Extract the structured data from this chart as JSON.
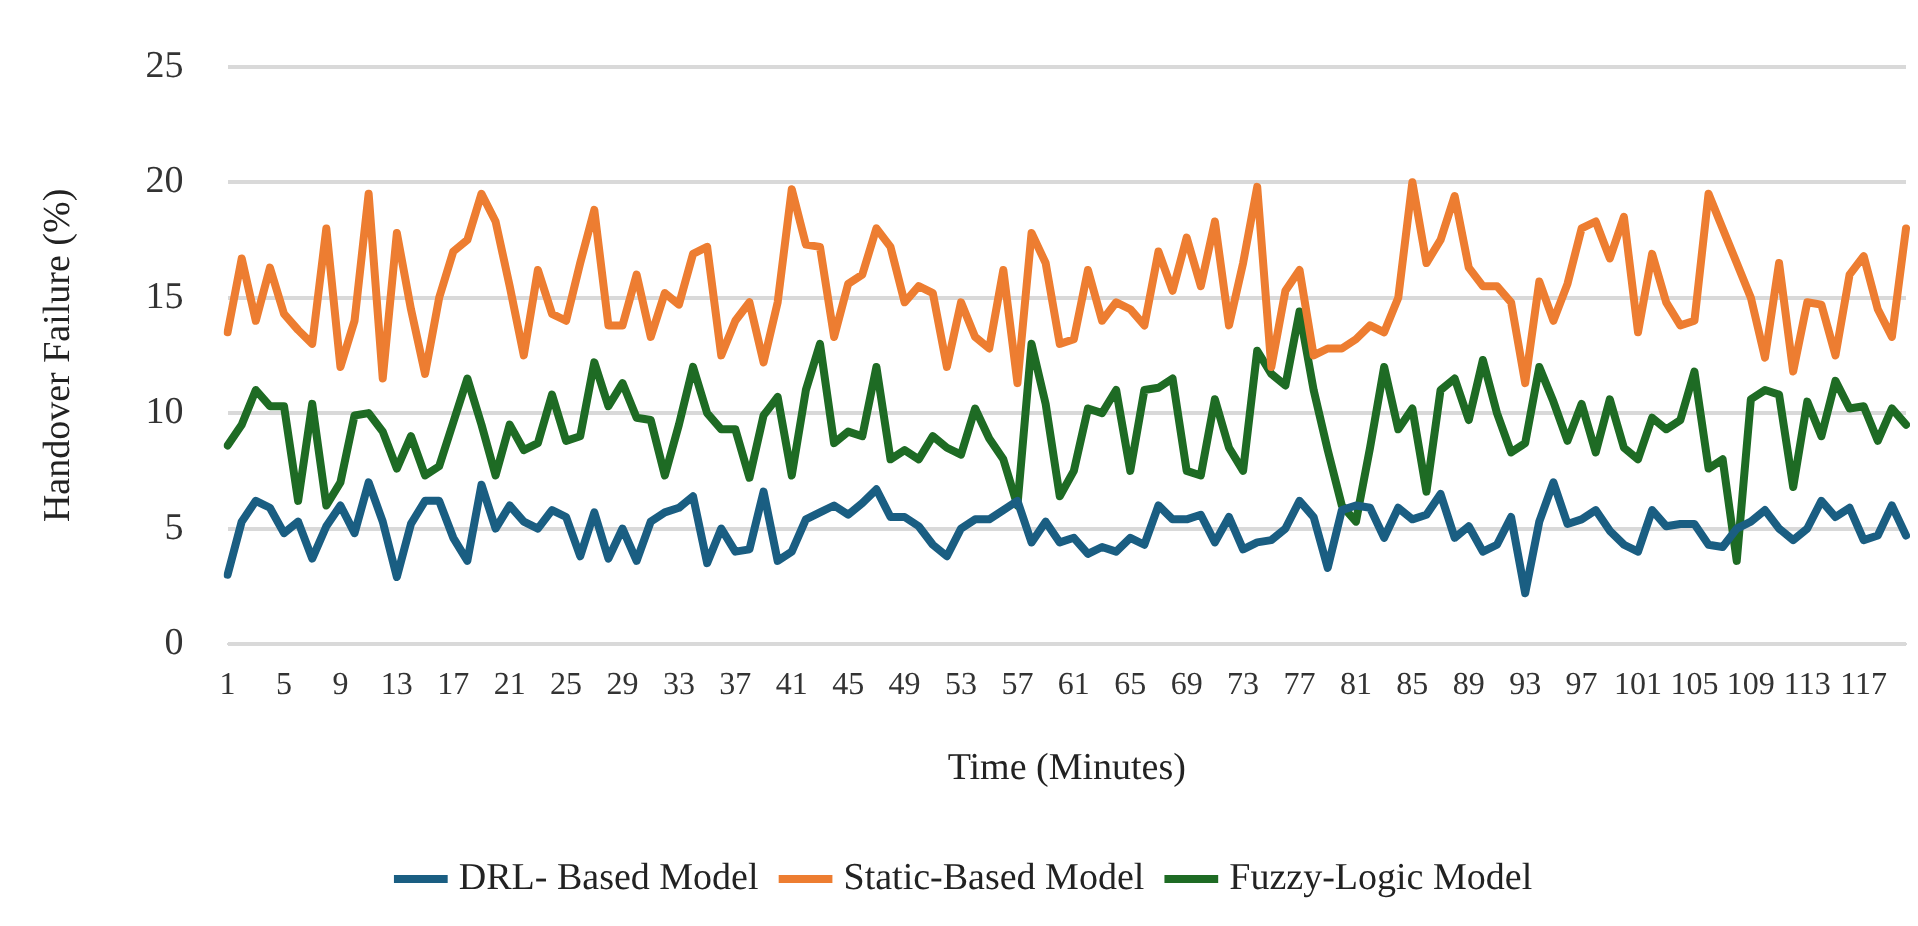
{
  "chart_data": {
    "type": "line",
    "xlabel": "Time (Minutes)",
    "ylabel": "Handover Failure (%)",
    "categories": [
      "1",
      null,
      null,
      null,
      "5",
      null,
      null,
      null,
      "9",
      null,
      null,
      null,
      "13",
      null,
      null,
      null,
      "17",
      null,
      null,
      null,
      "21",
      null,
      null,
      null,
      "25",
      null,
      null,
      null,
      "29",
      null,
      null,
      null,
      "33",
      null,
      null,
      null,
      "37",
      null,
      null,
      null,
      "41",
      null,
      null,
      null,
      "45",
      null,
      null,
      null,
      "49",
      null,
      null,
      null,
      "53",
      null,
      null,
      null,
      "57",
      null,
      null,
      null,
      "61",
      null,
      null,
      null,
      "65",
      null,
      null,
      null,
      "69",
      null,
      null,
      null,
      "73",
      null,
      null,
      null,
      "77",
      null,
      null,
      null,
      "81",
      null,
      null,
      null,
      "85",
      null,
      null,
      null,
      "89",
      null,
      null,
      null,
      "93",
      null,
      null,
      null,
      "97",
      null,
      null,
      null,
      "101",
      null,
      null,
      null,
      "105",
      null,
      null,
      null,
      "109",
      null,
      null,
      null,
      "113",
      null,
      null,
      null,
      "117",
      null,
      null,
      null
    ],
    "series": [
      {
        "name": "DRL- Based Model",
        "color": "#1a5e82",
        "values": [
          3,
          5.3,
          6.2,
          5.9,
          4.8,
          5.3,
          3.7,
          5.1,
          6,
          4.8,
          7,
          5.3,
          2.9,
          5.2,
          6.2,
          6.2,
          4.6,
          3.6,
          6.9,
          5,
          6,
          5.3,
          5,
          5.8,
          5.5,
          3.8,
          5.7,
          3.7,
          5,
          3.6,
          5.3,
          5.7,
          5.9,
          6.4,
          3.5,
          5,
          4,
          4.1,
          6.6,
          3.6,
          4,
          5.4,
          5.7,
          6,
          5.6,
          6.1,
          6.7,
          5.5,
          5.5,
          5.1,
          4.3,
          3.8,
          5,
          5.4,
          5.4,
          5.8,
          6.2,
          4.4,
          5.3,
          4.4,
          4.6,
          3.9,
          4.2,
          4,
          4.6,
          4.3,
          6,
          5.4,
          5.4,
          5.6,
          4.4,
          5.5,
          4.1,
          4.4,
          4.5,
          5,
          6.2,
          5.5,
          3.3,
          5.8,
          6,
          5.9,
          4.6,
          5.9,
          5.4,
          5.6,
          6.5,
          4.6,
          5.1,
          4,
          4.3,
          5.5,
          2.2,
          5.3,
          7,
          5.2,
          5.4,
          5.8,
          4.9,
          4.3,
          4,
          5.8,
          5.1,
          5.2,
          5.2,
          4.3,
          4.2,
          5,
          5.3,
          5.8,
          5,
          4.5,
          5,
          6.2,
          5.5,
          5.9,
          4.5,
          4.7,
          6,
          4.7
        ]
      },
      {
        "name": "Static-Based Model",
        "color": "#ed7d31",
        "values": [
          13.5,
          16.7,
          14,
          16.3,
          14.3,
          13.6,
          13,
          18,
          12,
          14,
          19.5,
          11.5,
          17.8,
          14.5,
          11.7,
          15,
          17,
          17.5,
          19.5,
          18.3,
          15.5,
          12.5,
          16.2,
          14.3,
          14,
          16.5,
          18.8,
          13.8,
          13.8,
          16,
          13.3,
          15.2,
          14.7,
          16.9,
          17.2,
          12.5,
          14,
          14.8,
          12.2,
          14.8,
          19.7,
          17.3,
          17.2,
          13.3,
          15.6,
          16,
          18,
          17.2,
          14.8,
          15.5,
          15.2,
          12,
          14.8,
          13.3,
          12.8,
          16.2,
          11.3,
          17.8,
          16.5,
          13,
          13.2,
          16.2,
          14,
          14.8,
          14.5,
          13.8,
          17,
          15.3,
          17.6,
          15.5,
          18.3,
          13.8,
          16.5,
          19.8,
          12,
          15.3,
          16.2,
          12.5,
          12.8,
          12.8,
          13.2,
          13.8,
          13.5,
          15,
          20,
          16.5,
          17.5,
          19.4,
          16.3,
          15.5,
          15.5,
          14.8,
          11.3,
          15.7,
          14,
          15.6,
          18,
          18.3,
          16.7,
          18.5,
          13.5,
          16.9,
          14.8,
          13.8,
          14,
          19.5,
          18,
          16.5,
          15,
          12.4,
          16.5,
          11.8,
          14.8,
          14.7,
          12.5,
          16,
          16.8,
          14.5,
          13.3,
          18
        ]
      },
      {
        "name": "Fuzzy-Logic Model",
        "color": "#1e6b24",
        "values": [
          8.6,
          9.5,
          11,
          10.3,
          10.3,
          6.2,
          10.4,
          6,
          7,
          9.9,
          10,
          9.2,
          7.6,
          9,
          7.3,
          7.7,
          9.6,
          11.5,
          9.5,
          7.3,
          9.5,
          8.4,
          8.7,
          10.8,
          8.8,
          9,
          12.2,
          10.3,
          11.3,
          9.8,
          9.7,
          7.3,
          9.5,
          12,
          10,
          9.3,
          9.3,
          7.2,
          9.9,
          10.7,
          7.3,
          11,
          13,
          8.7,
          9.2,
          9,
          12,
          8,
          8.4,
          8,
          9,
          8.5,
          8.2,
          10.2,
          8.9,
          8,
          6,
          13,
          10.4,
          6.4,
          7.5,
          10.2,
          10,
          11,
          7.5,
          11,
          11.1,
          11.5,
          7.5,
          7.3,
          10.6,
          8.5,
          7.5,
          12.7,
          11.7,
          11.2,
          14.4,
          11,
          8.4,
          6,
          5.3,
          8.5,
          12,
          9.3,
          10.2,
          6.6,
          11,
          11.5,
          9.7,
          12.3,
          10,
          8.3,
          8.7,
          12,
          10.5,
          8.8,
          10.4,
          8.3,
          10.6,
          8.5,
          8,
          9.8,
          9.3,
          9.7,
          11.8,
          7.6,
          8,
          3.6,
          10.6,
          11,
          10.8,
          6.8,
          10.5,
          9,
          11.4,
          10.2,
          10.3,
          8.8,
          10.2,
          9.5
        ]
      }
    ],
    "ylim": [
      0,
      25
    ],
    "yticks": [
      0,
      5,
      10,
      15,
      20,
      25
    ],
    "grid": "y",
    "legend": "bottom",
    "marker": "none",
    "line_style": "solid"
  }
}
